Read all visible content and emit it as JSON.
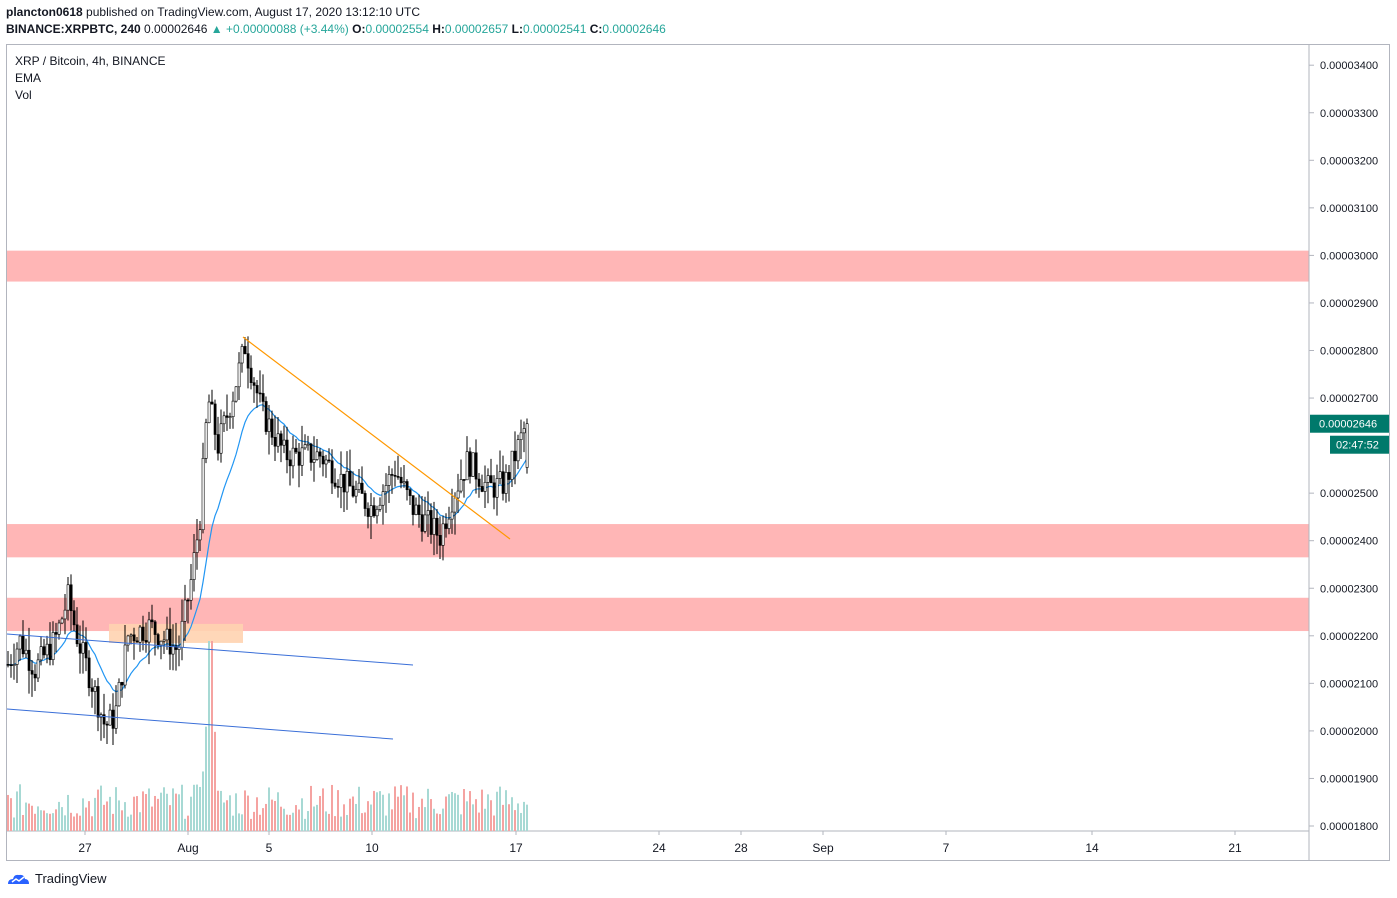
{
  "header": {
    "publisher": "plancton0618",
    "published_text": "published on TradingView.com, August 17, 2020 13:12:10 UTC",
    "symbol": "BINANCE:XRPBTC, 240",
    "price": "0.00002646",
    "change": "▲ +0.00000088 (+3.44%)",
    "o_label": "O:",
    "o_val": "0.00002554",
    "h_label": "H:",
    "h_val": "0.00002657",
    "l_label": "L:",
    "l_val": "0.00002541",
    "c_label": "C:",
    "c_val": "0.00002646"
  },
  "legend": {
    "title": "XRP / Bitcoin, 4h, BINANCE",
    "ema": "EMA",
    "vol": "Vol"
  },
  "footer": {
    "brand": "TradingView"
  },
  "colors": {
    "up": "#26a69a",
    "down": "#ef5350",
    "vol_up": "#a7d9d4",
    "vol_down": "#f5a3a1",
    "ema": "#2196f3",
    "zone": "#ffb6b6",
    "trendline": "#ff9800",
    "channel": "#3a6fd8",
    "price_tag": "#00796b"
  },
  "chart_data": {
    "type": "candlestick",
    "price_axis_ticks": [
      "0.00003400",
      "0.00003300",
      "0.00003200",
      "0.00003100",
      "0.00003000",
      "0.00002900",
      "0.00002800",
      "0.00002700",
      "0.00002500",
      "0.00002400",
      "0.00002300",
      "0.00002200",
      "0.00002100",
      "0.00002000",
      "0.00001900",
      "0.00001800"
    ],
    "x_ticks": [
      "27",
      "Aug",
      "5",
      "10",
      "17",
      "24",
      "28",
      "Sep",
      "7",
      "14",
      "21"
    ],
    "ylim": [
      1.79e-05,
      3.45e-05
    ],
    "last_price_tag": "0.00002646",
    "countdown_tag": "02:47:52",
    "resistance_zones": [
      [
        2.945e-05,
        3.01e-05
      ],
      [
        2.365e-05,
        2.435e-05
      ],
      [
        2.21e-05,
        2.28e-05
      ]
    ],
    "small_zone": [
      2.185e-05,
      2.225e-05
    ],
    "ohlc_sample_keypoints": [
      {
        "x": "23 Jul",
        "price": 2.15e-05
      },
      {
        "x": "26 Jul",
        "price": 2.28e-05
      },
      {
        "x": "29 Jul",
        "price": 2e-05
      },
      {
        "x": "1 Aug",
        "price": 2.22e-05
      },
      {
        "x": "2 Aug",
        "price": 2.71e-05
      },
      {
        "x": "4 Aug",
        "price": 2.81e-05
      },
      {
        "x": "10 Aug",
        "price": 2.44e-05
      },
      {
        "x": "11 Aug",
        "price": 2.55e-05
      },
      {
        "x": "13 Aug",
        "price": 2.41e-05
      },
      {
        "x": "14 Aug",
        "price": 2.58e-05
      },
      {
        "x": "17 Aug",
        "price": 2.65e-05
      }
    ]
  }
}
